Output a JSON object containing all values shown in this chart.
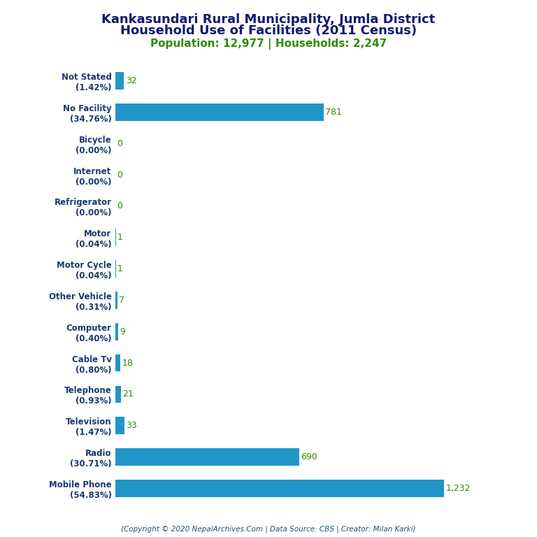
{
  "title_line1": "Kankasundari Rural Municipality, Jumla District",
  "title_line2": "Household Use of Facilities (2011 Census)",
  "subtitle": "Population: 12,977 | Households: 2,247",
  "footer": "(Copyright © 2020 NepalArchives.Com | Data Source: CBS | Creator: Milan Karki)",
  "title_color": "#0d1b6e",
  "subtitle_color": "#2e8b00",
  "footer_color": "#1a5276",
  "bar_color": "#2196c8",
  "value_color": "#2e8b00",
  "label_color": "#1a3a6e",
  "categories": [
    "Not Stated\n(1.42%)",
    "No Facility\n(34.76%)",
    "Bicycle\n(0.00%)",
    "Internet\n(0.00%)",
    "Refrigerator\n(0.00%)",
    "Motor\n(0.04%)",
    "Motor Cycle\n(0.04%)",
    "Other Vehicle\n(0.31%)",
    "Computer\n(0.40%)",
    "Cable Tv\n(0.80%)",
    "Telephone\n(0.93%)",
    "Television\n(1.47%)",
    "Radio\n(30.71%)",
    "Mobile Phone\n(54.83%)"
  ],
  "values": [
    32,
    781,
    0,
    0,
    0,
    1,
    1,
    7,
    9,
    18,
    21,
    33,
    690,
    1232
  ],
  "value_labels": [
    "32",
    "781",
    "0",
    "0",
    "0",
    "1",
    "1",
    "7",
    "9",
    "18",
    "21",
    "33",
    "690",
    "1,232"
  ],
  "xlim": [
    0,
    1500
  ],
  "background_color": "#ffffff"
}
